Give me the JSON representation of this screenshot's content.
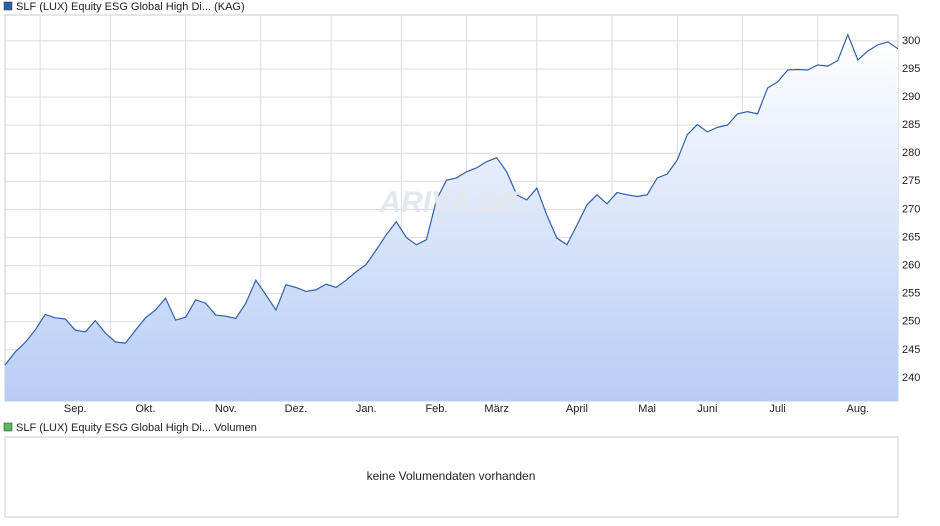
{
  "chart_data": [
    {
      "type": "line",
      "watermark": "ARIVA.DE",
      "categories": [
        null,
        null,
        null,
        null,
        null,
        null,
        null,
        "Sep.",
        null,
        null,
        null,
        null,
        null,
        null,
        "Okt.",
        null,
        null,
        null,
        null,
        null,
        null,
        null,
        "Nov.",
        null,
        null,
        null,
        null,
        null,
        null,
        "Dez.",
        null,
        null,
        null,
        null,
        null,
        null,
        "Jan.",
        null,
        null,
        null,
        null,
        null,
        null,
        "Feb.",
        null,
        null,
        null,
        null,
        null,
        "März",
        null,
        null,
        null,
        null,
        null,
        null,
        null,
        "April",
        null,
        null,
        null,
        null,
        null,
        null,
        "Mai",
        null,
        null,
        null,
        null,
        null,
        "Juni",
        null,
        null,
        null,
        null,
        null,
        null,
        "Juli",
        null,
        null,
        null,
        null,
        null,
        null,
        null,
        "Aug.",
        null,
        null,
        null,
        null
      ],
      "series": [
        {
          "name": "SLF (LUX) Equity ESG Global High Di... (KAG)",
          "color": "#2f5fae",
          "values": [
            242.3,
            244.6,
            246.3,
            248.5,
            251.3,
            250.7,
            250.5,
            248.5,
            248.2,
            250.2,
            248,
            246.4,
            246.2,
            248.5,
            250.7,
            252.1,
            254.2,
            250.3,
            250.8,
            253.9,
            253.3,
            251.2,
            251,
            250.6,
            253.3,
            257.4,
            254.8,
            252.1,
            256.6,
            256.1,
            255.4,
            255.7,
            256.7,
            256.1,
            257.4,
            258.9,
            260.2,
            262.8,
            265.5,
            267.8,
            265,
            263.7,
            264.6,
            271.7,
            275.2,
            275.6,
            276.7,
            277.4,
            278.5,
            279.2,
            276.7,
            272.6,
            271.7,
            273.8,
            269,
            264.9,
            263.7,
            267.2,
            270.8,
            272.6,
            271,
            273,
            272.6,
            272.3,
            272.6,
            275.6,
            276.3,
            278.8,
            283.3,
            285.1,
            283.8,
            284.6,
            285,
            287,
            287.4,
            287,
            291.6,
            292.7,
            294.8,
            294.9,
            294.8,
            295.7,
            295.5,
            296.5,
            301.1,
            296.6,
            298.2,
            299.3,
            299.8,
            298.6
          ]
        }
      ],
      "ylim": [
        235.9,
        304.6
      ],
      "yticks": [
        240,
        245,
        250,
        255,
        260,
        265,
        270,
        275,
        280,
        285,
        290,
        295,
        300
      ],
      "grid": true
    },
    {
      "type": "bar",
      "series": [
        {
          "name": "SLF (LUX) Equity ESG Global High Di... Volumen",
          "color": "#5cb85c",
          "values": []
        }
      ],
      "annotation": "keine Volumendaten vorhanden"
    }
  ]
}
